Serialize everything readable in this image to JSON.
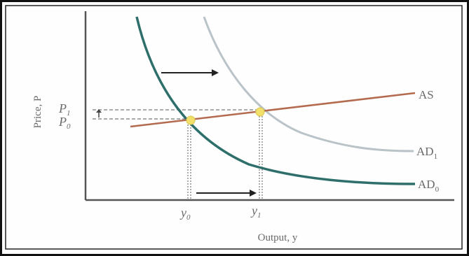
{
  "chart_data": {
    "type": "line",
    "xlabel": "Output, y",
    "ylabel": "Price, P",
    "x_ticks": [
      {
        "main": "y",
        "sub": "0"
      },
      {
        "main": "y",
        "sub": "1"
      }
    ],
    "y_ticks": [
      {
        "main": "P",
        "sub": "0"
      },
      {
        "main": "P",
        "sub": "1"
      }
    ],
    "series": [
      {
        "name": "AS",
        "color": "#b46a4e"
      },
      {
        "name": "AD",
        "sub": "0",
        "color": "#2f6f6b"
      },
      {
        "name": "AD",
        "sub": "1",
        "color": "#b9c3c8"
      }
    ],
    "equilibria": [
      {
        "x": "y0",
        "y": "P0"
      },
      {
        "x": "y1",
        "y": "P1"
      }
    ],
    "annotations": [
      "shift right of AD",
      "increase in output"
    ],
    "colors": {
      "axis": "#555555",
      "frame": "#111111",
      "point": "#f2e06a",
      "guide": "#777777",
      "label": "#6a6a6a"
    }
  }
}
